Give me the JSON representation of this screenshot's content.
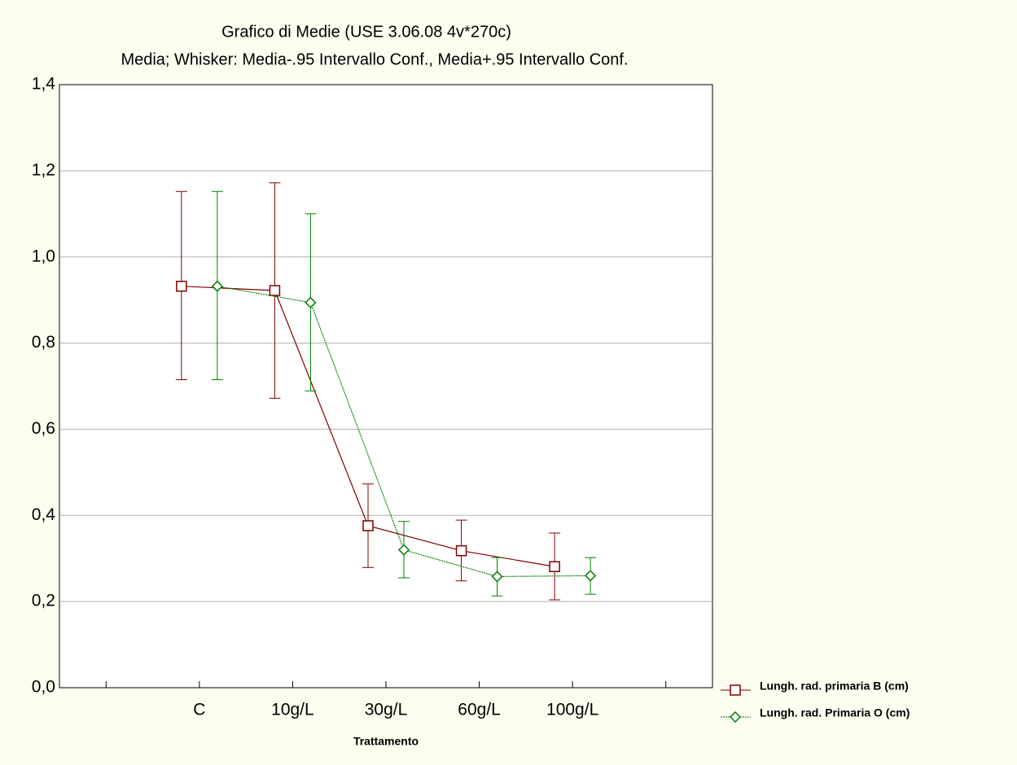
{
  "chart_data": {
    "type": "line",
    "title": "Grafico di Medie (USE 3.06.08 4v*270c)",
    "subtitle": "Media;  Whisker: Media-.95 Intervallo Conf., Media+.95 Intervallo Conf.",
    "x_label": "Trattamento",
    "categories": [
      null,
      "C",
      "10g/L",
      "30g/L",
      "60g/L",
      "100g/L",
      null
    ],
    "series": [
      {
        "name": "Lungh. rad. primaria B (cm)",
        "color": "#800000",
        "marker": "square",
        "line": "solid",
        "values": [
          null,
          0.932,
          0.922,
          0.376,
          0.318,
          0.281,
          null
        ],
        "lower": [
          null,
          0.715,
          0.672,
          0.279,
          0.248,
          0.204,
          null
        ],
        "upper": [
          null,
          1.152,
          1.172,
          0.473,
          0.389,
          0.359,
          null
        ]
      },
      {
        "name": "Lungh. rad. Primaria O (cm)",
        "color": "#008000",
        "marker": "diamond",
        "line": "dotted",
        "values": [
          null,
          0.932,
          0.894,
          0.32,
          0.258,
          0.26,
          null
        ],
        "lower": [
          null,
          0.715,
          0.689,
          0.255,
          0.213,
          0.217,
          null
        ],
        "upper": [
          null,
          1.152,
          1.1,
          0.386,
          0.302,
          0.302,
          null
        ]
      }
    ],
    "ylim": [
      0,
      1.4
    ],
    "yticks": [
      {
        "value": 0,
        "label": "0,0"
      },
      {
        "value": 0.2,
        "label": "0,2"
      },
      {
        "value": 0.4,
        "label": "0,4"
      },
      {
        "value": 0.6,
        "label": "0,6"
      },
      {
        "value": 0.8,
        "label": "0,8"
      },
      {
        "value": 1.0,
        "label": "1,0"
      },
      {
        "value": 1.2,
        "label": "1,2"
      },
      {
        "value": 1.4,
        "label": "1,4"
      }
    ],
    "grid": true,
    "legend": "bottom-right"
  }
}
